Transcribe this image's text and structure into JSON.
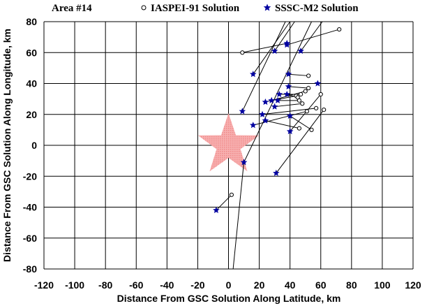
{
  "chart_data": {
    "type": "scatter",
    "title": "Area #14",
    "xlabel": "Distance From GSC Solution Along Latitude, km",
    "ylabel": "Distance From GSC Solution Along Longitude, km",
    "xlim": [
      -120,
      120
    ],
    "ylim": [
      -80,
      80
    ],
    "xticks": [
      -120,
      -100,
      -80,
      -60,
      -40,
      -20,
      0,
      20,
      40,
      60,
      80,
      100,
      120
    ],
    "yticks": [
      -80,
      -60,
      -40,
      -20,
      0,
      20,
      40,
      60,
      80
    ],
    "grid": true,
    "legend_position": "top",
    "reference_marker": {
      "shape": "star",
      "x": 0,
      "y": 0,
      "color": "#f08a8a"
    },
    "series": [
      {
        "name": "IASPEI-91 Solution",
        "marker": "open-circle",
        "color": "#000000"
      },
      {
        "name": "SSSC-M2 Solution",
        "marker": "filled-star",
        "color": "#0000a0"
      }
    ],
    "pairs": [
      {
        "iaspei": [
          72,
          75
        ],
        "sssc": [
          38,
          65
        ]
      },
      {
        "iaspei": [
          9,
          60
        ],
        "sssc": [
          38,
          66
        ]
      },
      {
        "iaspei": [
          52,
          45
        ],
        "sssc": [
          39,
          46
        ]
      },
      {
        "iaspei": [
          52,
          37
        ],
        "sssc": [
          39,
          38
        ]
      },
      {
        "iaspei": [
          47,
          33
        ],
        "sssc": [
          33,
          33
        ]
      },
      {
        "iaspei": [
          44,
          32
        ],
        "sssc": [
          28,
          29
        ]
      },
      {
        "iaspei": [
          50,
          35
        ],
        "sssc": [
          24,
          28
        ]
      },
      {
        "iaspei": [
          45,
          31
        ],
        "sssc": [
          38,
          33
        ]
      },
      {
        "iaspei": [
          46,
          29
        ],
        "sssc": [
          32,
          29
        ]
      },
      {
        "iaspei": [
          57,
          24
        ],
        "sssc": [
          22,
          20
        ]
      },
      {
        "iaspei": [
          48,
          27
        ],
        "sssc": [
          30,
          25
        ]
      },
      {
        "iaspei": [
          51,
          22
        ],
        "sssc": [
          16,
          13
        ]
      },
      {
        "iaspei": [
          60,
          33
        ],
        "sssc": [
          40,
          9
        ]
      },
      {
        "iaspei": [
          46,
          11
        ],
        "sssc": [
          24,
          16
        ]
      },
      {
        "iaspei": [
          54,
          10
        ],
        "sssc": [
          40,
          19
        ]
      },
      {
        "iaspei": [
          62,
          23
        ],
        "sssc": [
          31,
          -18
        ]
      },
      {
        "iaspei": [
          2,
          -32
        ],
        "sssc": [
          -8,
          -42
        ]
      }
    ],
    "extra_sssc_points": [
      [
        30,
        61
      ],
      [
        47,
        61
      ],
      [
        16,
        46
      ],
      [
        58,
        40
      ],
      [
        9,
        22
      ],
      [
        10,
        -11
      ]
    ],
    "long_lines": [
      {
        "from": [
          9,
          22
        ],
        "to": [
          37,
          80
        ]
      },
      {
        "from": [
          30,
          61
        ],
        "to": [
          43,
          80
        ]
      },
      {
        "from": [
          47,
          61
        ],
        "to": [
          61,
          80
        ]
      },
      {
        "from": [
          16,
          46
        ],
        "to": [
          40,
          80
        ]
      },
      {
        "from": [
          10,
          -11
        ],
        "to": [
          54,
          80
        ]
      },
      {
        "from": [
          3,
          -80
        ],
        "to": [
          10,
          -11
        ]
      }
    ]
  }
}
